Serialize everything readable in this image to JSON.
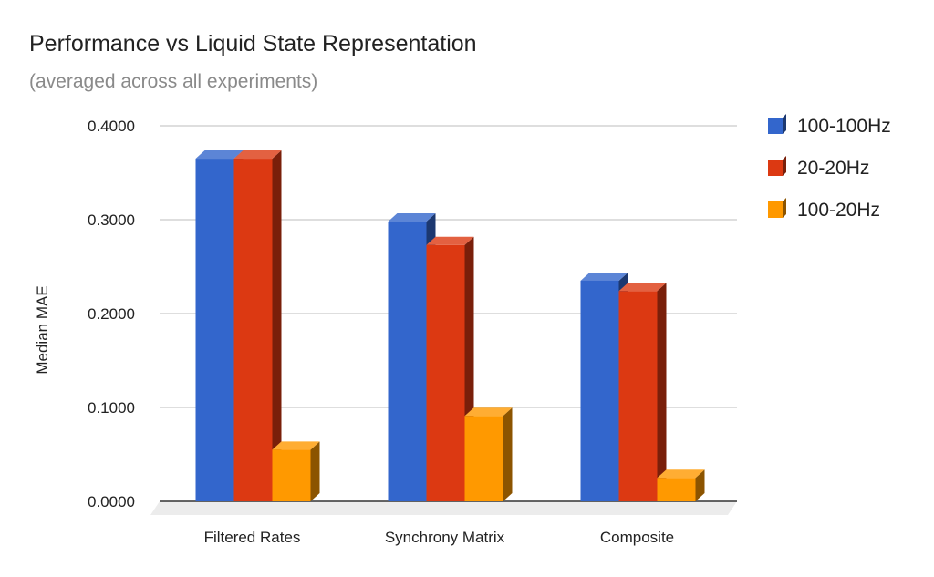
{
  "chart_data": {
    "type": "bar",
    "title": "Performance vs Liquid State Representation",
    "subtitle": "(averaged across all experiments)",
    "xlabel": "",
    "ylabel": "Median MAE",
    "ylim": [
      0,
      0.4
    ],
    "yticks": [
      "0.0000",
      "0.1000",
      "0.2000",
      "0.3000",
      "0.4000"
    ],
    "grid": true,
    "legend_position": "right",
    "categories": [
      "Filtered Rates",
      "Synchrony Matrix",
      "Composite"
    ],
    "series": [
      {
        "name": "100-100Hz",
        "values": [
          0.365,
          0.298,
          0.235
        ],
        "color": "#3366cc"
      },
      {
        "name": "20-20Hz",
        "values": [
          0.365,
          0.273,
          0.224
        ],
        "color": "#dc3912"
      },
      {
        "name": "100-20Hz",
        "values": [
          0.055,
          0.091,
          0.025
        ],
        "color": "#ff9900"
      }
    ]
  }
}
